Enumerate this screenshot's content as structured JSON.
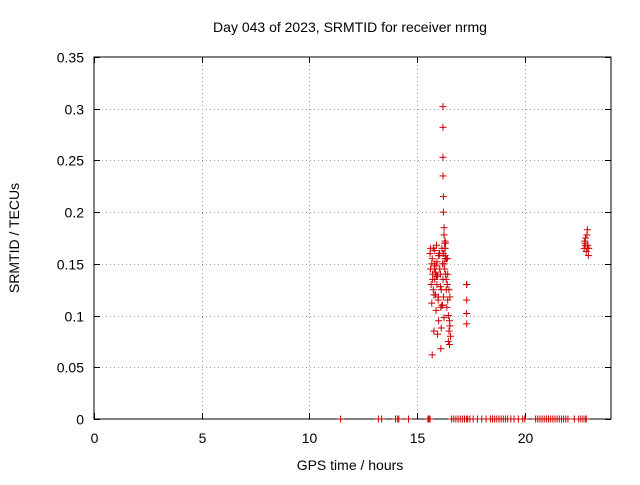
{
  "chart_data": {
    "type": "scatter",
    "title": "Day 043 of 2023, SRMTID for receiver nrmg",
    "xlabel": "GPS time / hours",
    "ylabel": "SRMTID / TECUs",
    "xlim": [
      0,
      24
    ],
    "ylim": [
      0,
      0.35
    ],
    "grid": true,
    "x_ticks": [
      0,
      5,
      10,
      15,
      20
    ],
    "x_tick_labels": [
      "0",
      "5",
      "10",
      "15",
      "20"
    ],
    "y_ticks": [
      0,
      0.05,
      0.1,
      0.15,
      0.2,
      0.25,
      0.3,
      0.35
    ],
    "y_tick_labels": [
      "0",
      "0.05",
      "0.1",
      "0.15",
      "0.2",
      "0.25",
      "0.3",
      "0.35"
    ],
    "marker": "+",
    "marker_color": "#cc0000",
    "series": [
      {
        "name": "SRMTID",
        "x": [
          11.45,
          13.2,
          13.35,
          14.0,
          14.1,
          14.15,
          14.6,
          15.5,
          15.55,
          15.6,
          16.6,
          16.7,
          16.8,
          16.9,
          17.0,
          17.1,
          17.2,
          17.3,
          17.35,
          17.45,
          17.6,
          17.8,
          18.0,
          18.2,
          18.4,
          18.5,
          18.6,
          18.7,
          18.8,
          18.9,
          19.0,
          19.1,
          19.2,
          19.35,
          19.5,
          19.7,
          19.9,
          20.0,
          20.5,
          20.6,
          20.7,
          20.8,
          20.9,
          21.0,
          21.1,
          21.2,
          21.3,
          21.4,
          21.5,
          21.6,
          21.7,
          21.8,
          21.9,
          22.0,
          22.3,
          22.5,
          22.6,
          22.7,
          22.8,
          22.85,
          15.6,
          15.62,
          15.65,
          15.68,
          15.7,
          15.72,
          15.75,
          15.78,
          15.8,
          15.82,
          15.85,
          15.88,
          15.9,
          15.92,
          15.95,
          15.98,
          16.0,
          16.02,
          16.05,
          16.08,
          16.1,
          16.12,
          16.15,
          16.18,
          16.2,
          16.22,
          16.25,
          16.28,
          16.3,
          16.32,
          16.35,
          16.38,
          16.4,
          16.42,
          16.45,
          16.48,
          16.5,
          16.52,
          16.55,
          15.62,
          15.68,
          15.72,
          15.78,
          15.82,
          15.88,
          15.92,
          15.98,
          16.02,
          16.08,
          16.12,
          16.18,
          16.22,
          16.28,
          16.32,
          16.38,
          16.42,
          16.48,
          16.52,
          15.7,
          15.8,
          15.9,
          16.0,
          16.1,
          16.2,
          16.3,
          16.4,
          16.5,
          15.75,
          15.85,
          15.95,
          16.05,
          16.15,
          16.25,
          16.35,
          16.45,
          16.2,
          16.2,
          16.2,
          16.2,
          16.22,
          16.22,
          16.25,
          16.25,
          16.28,
          16.3,
          16.3,
          16.35,
          17.3,
          17.3,
          17.3,
          17.3,
          17.3,
          22.75,
          22.78,
          22.8,
          22.82,
          22.85,
          22.88,
          22.9,
          22.92,
          22.95,
          22.97,
          22.8,
          22.9
        ],
        "y": [
          0,
          0,
          0,
          0,
          0,
          0,
          0,
          0,
          0,
          0,
          0,
          0,
          0,
          0,
          0,
          0,
          0,
          0,
          0,
          0,
          0,
          0,
          0,
          0,
          0,
          0,
          0,
          0,
          0,
          0,
          0,
          0,
          0,
          0,
          0,
          0,
          0,
          0,
          0,
          0,
          0,
          0,
          0,
          0,
          0,
          0,
          0,
          0,
          0,
          0,
          0,
          0,
          0,
          0,
          0,
          0,
          0,
          0,
          0,
          0,
          0.16,
          0.145,
          0.13,
          0.112,
          0.155,
          0.14,
          0.125,
          0.085,
          0.15,
          0.135,
          0.12,
          0.105,
          0.168,
          0.152,
          0.138,
          0.118,
          0.095,
          0.16,
          0.145,
          0.128,
          0.108,
          0.088,
          0.165,
          0.15,
          0.135,
          0.118,
          0.098,
          0.165,
          0.155,
          0.14,
          0.125,
          0.108,
          0.13,
          0.115,
          0.1,
          0.085,
          0.072,
          0.09,
          0.08,
          0.165,
          0.15,
          0.135,
          0.12,
          0.163,
          0.148,
          0.13,
          0.115,
          0.158,
          0.14,
          0.125,
          0.11,
          0.16,
          0.145,
          0.17,
          0.155,
          0.14,
          0.125,
          0.118,
          0.062,
          0.145,
          0.138,
          0.158,
          0.068,
          0.16,
          0.172,
          0.155,
          0.095,
          0.165,
          0.142,
          0.082,
          0.16,
          0.11,
          0.15,
          0.135,
          0.075,
          0.302,
          0.282,
          0.253,
          0.235,
          0.215,
          0.2,
          0.185,
          0.178,
          0.17,
          0.165,
          0.158,
          0.155,
          0.13,
          0.115,
          0.102,
          0.092,
          0.13,
          0.165,
          0.172,
          0.168,
          0.175,
          0.162,
          0.178,
          0.183,
          0.168,
          0.158,
          0.165,
          0.17,
          0.165
        ]
      }
    ]
  }
}
